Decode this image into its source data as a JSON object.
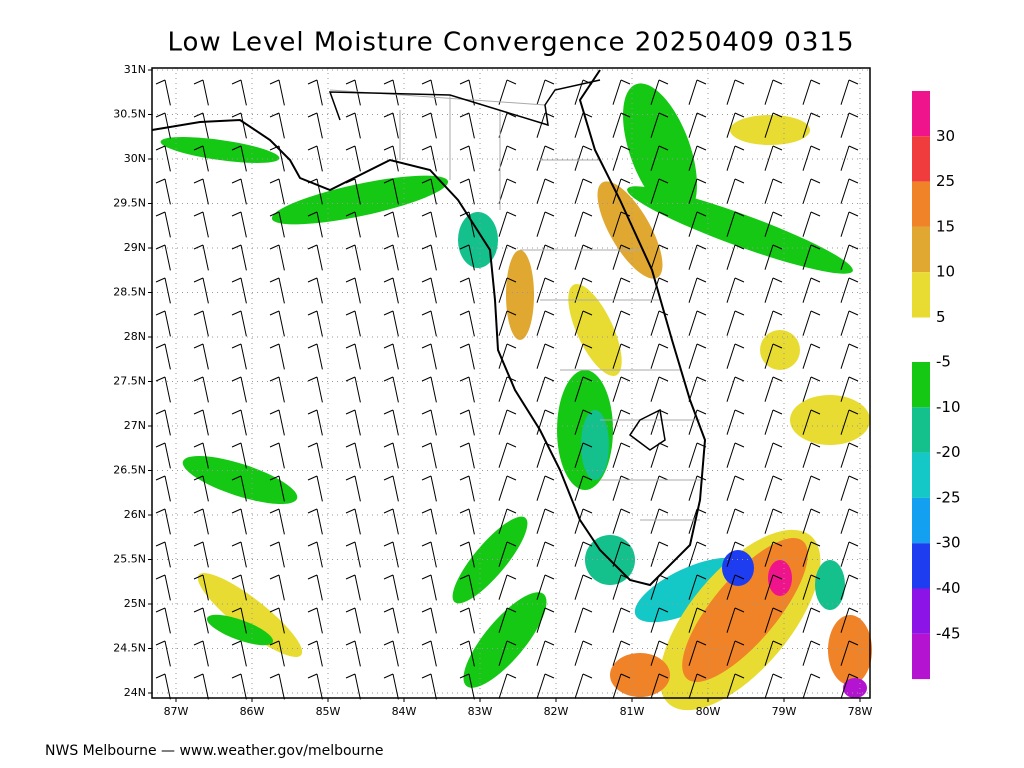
{
  "title": "Low Level Moisture Convergence 20250409 0315",
  "map": {
    "lat_ticks": [
      {
        "value": 31,
        "label": "31N"
      },
      {
        "value": 30.5,
        "label": "30.5N"
      },
      {
        "value": 30,
        "label": "30N"
      },
      {
        "value": 29.5,
        "label": "29.5N"
      },
      {
        "value": 29,
        "label": "29N"
      },
      {
        "value": 28.5,
        "label": "28.5N"
      },
      {
        "value": 28,
        "label": "28N"
      },
      {
        "value": 27.5,
        "label": "27.5N"
      },
      {
        "value": 27,
        "label": "27N"
      },
      {
        "value": 26.5,
        "label": "26.5N"
      },
      {
        "value": 26,
        "label": "26N"
      },
      {
        "value": 25.5,
        "label": "25.5N"
      },
      {
        "value": 25,
        "label": "25N"
      },
      {
        "value": 24.5,
        "label": "24.5N"
      },
      {
        "value": 24,
        "label": "24N"
      }
    ],
    "lon_ticks": [
      {
        "value": -87,
        "label": "87W"
      },
      {
        "value": -86,
        "label": "86W"
      },
      {
        "value": -85,
        "label": "85W"
      },
      {
        "value": -84,
        "label": "84W"
      },
      {
        "value": -83,
        "label": "83W"
      },
      {
        "value": -82,
        "label": "82W"
      },
      {
        "value": -81,
        "label": "81W"
      },
      {
        "value": -80,
        "label": "80W"
      },
      {
        "value": -79,
        "label": "79W"
      },
      {
        "value": -78,
        "label": "78W"
      }
    ]
  },
  "colorbar": {
    "positive_labels": [
      "30",
      "25",
      "15",
      "10",
      "5"
    ],
    "positive_colors": [
      "#f0148c",
      "#f03c3c",
      "#f08228",
      "#e0a830",
      "#e8dc32"
    ],
    "negative_labels": [
      "-5",
      "-10",
      "-20",
      "-25",
      "-30",
      "-40",
      "-45"
    ],
    "negative_colors": [
      "#14c814",
      "#14c08c",
      "#14c8c8",
      "#14a0f0",
      "#1e3cf0",
      "#8c14e6",
      "#b414d2"
    ]
  },
  "footer": "NWS Melbourne — www.weather.gov/melbourne"
}
